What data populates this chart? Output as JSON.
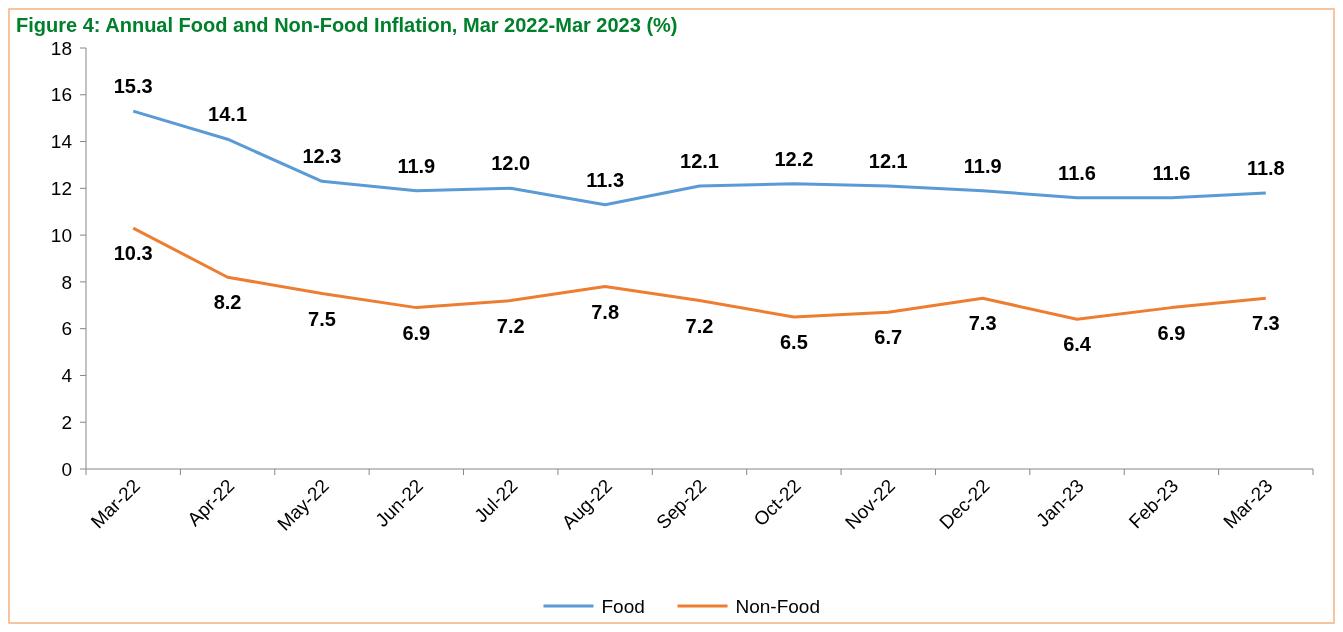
{
  "chart_data": {
    "type": "line",
    "title": "Figure 4: Annual Food and Non-Food Inflation, Mar 2022-Mar 2023 (%)",
    "categories": [
      "Mar-22",
      "Apr-22",
      "May-22",
      "Jun-22",
      "Jul-22",
      "Aug-22",
      "Sep-22",
      "Oct-22",
      "Nov-22",
      "Dec-22",
      "Jan-23",
      "Feb-23",
      "Mar-23"
    ],
    "series": [
      {
        "name": "Food",
        "color": "#5b9bd5",
        "values": [
          15.3,
          14.1,
          12.3,
          11.9,
          12.0,
          11.3,
          12.1,
          12.2,
          12.1,
          11.9,
          11.6,
          11.6,
          11.8
        ],
        "value_labels": [
          "15.3",
          "14.1",
          "12.3",
          "11.9",
          "12.0",
          "11.3",
          "12.1",
          "12.2",
          "12.1",
          "11.9",
          "11.6",
          "11.6",
          "11.8"
        ]
      },
      {
        "name": "Non-Food",
        "color": "#ed7d31",
        "values": [
          10.3,
          8.2,
          7.5,
          6.9,
          7.2,
          7.8,
          7.2,
          6.5,
          6.7,
          7.3,
          6.4,
          6.9,
          7.3
        ],
        "value_labels": [
          "10.3",
          "8.2",
          "7.5",
          "6.9",
          "7.2",
          "7.8",
          "7.2",
          "6.5",
          "6.7",
          "7.3",
          "6.4",
          "6.9",
          "7.3"
        ]
      }
    ],
    "ylim": [
      0,
      18
    ],
    "yticks": [
      0,
      2,
      4,
      6,
      8,
      10,
      12,
      14,
      16,
      18
    ],
    "legend": "bottom",
    "marker": "none",
    "line_style": "solid"
  }
}
